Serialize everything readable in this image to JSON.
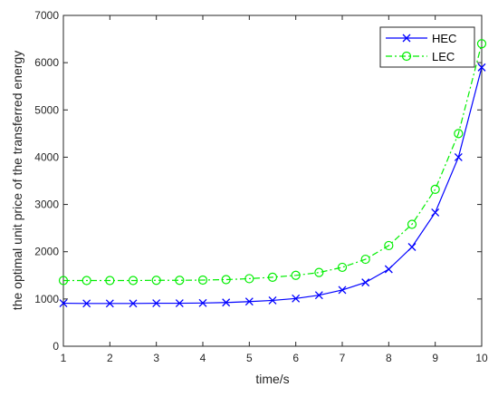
{
  "chart_data": {
    "type": "line",
    "title": "",
    "xlabel": "time/s",
    "ylabel": "the optimal unit price of the transferred energy",
    "xlim": [
      1,
      10
    ],
    "ylim": [
      0,
      7000
    ],
    "xticks": [
      1,
      2,
      3,
      4,
      5,
      6,
      7,
      8,
      9,
      10
    ],
    "yticks": [
      0,
      1000,
      2000,
      3000,
      4000,
      5000,
      6000,
      7000
    ],
    "grid": false,
    "legend_position": "top-right",
    "x": [
      1,
      1.5,
      2,
      2.5,
      3,
      3.5,
      4,
      4.5,
      5,
      5.5,
      6,
      6.5,
      7,
      7.5,
      8,
      8.5,
      9,
      9.5,
      10
    ],
    "series": [
      {
        "name": "HEC",
        "color": "#0000ff",
        "marker": "x",
        "line_style": "solid",
        "values": [
          910,
          905,
          905,
          905,
          910,
          910,
          915,
          925,
          945,
          970,
          1010,
          1080,
          1190,
          1350,
          1630,
          2100,
          2830,
          4000,
          5900
        ]
      },
      {
        "name": "LEC",
        "color": "#00ee00",
        "marker": "circle",
        "line_style": "dash-dot",
        "values": [
          1390,
          1390,
          1390,
          1390,
          1395,
          1395,
          1400,
          1410,
          1430,
          1460,
          1500,
          1560,
          1670,
          1840,
          2130,
          2580,
          3320,
          4500,
          6400
        ]
      }
    ]
  }
}
